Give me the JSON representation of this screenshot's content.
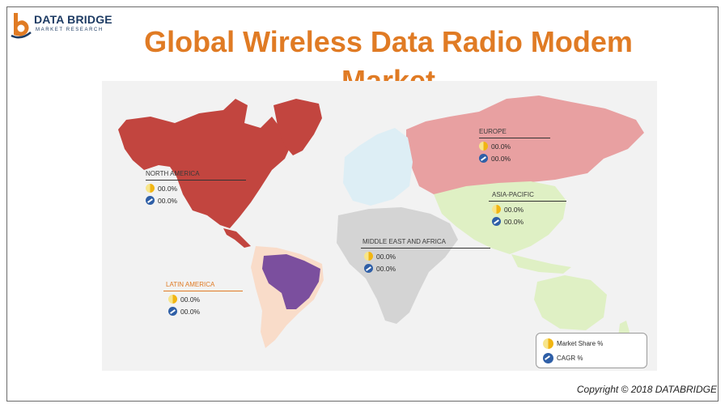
{
  "brand": {
    "name": "DATA BRIDGE",
    "tagline": "MARKET RESEARCH",
    "logo_letter": "b"
  },
  "title": "Global Wireless Data Radio Modem Market",
  "regions": [
    {
      "name": "NORTH AMERICA",
      "market_share": "00.0%",
      "cagr": "00.0%",
      "color": "#c2453f"
    },
    {
      "name": "EUROPE",
      "market_share": "00.0%",
      "cagr": "00.0%",
      "color": "#e8a0a1"
    },
    {
      "name": "ASIA-PACIFIC",
      "market_share": "00.0%",
      "cagr": "00.0%",
      "color": "#dff0c4"
    },
    {
      "name": "MIDDLE EAST AND AFRICA",
      "market_share": "00.0%",
      "cagr": "00.0%",
      "color": "#d4d4d4"
    },
    {
      "name": "LATIN AMERICA",
      "market_share": "00.0%",
      "cagr": "00.0%",
      "color": "#f9dcc9"
    }
  ],
  "legend": {
    "market_share_label": "Market Share  %",
    "cagr_label": "CAGR  %",
    "market_share_icon": "pie-icon",
    "cagr_icon": "growth-chart-icon"
  },
  "copyright": "Copyright © 2018 DATABRIDGE",
  "colors": {
    "title": "#e07b24",
    "brazil": "#7b4f9e",
    "greenland": "#c2453f",
    "russia_north": "#e8a0a1",
    "other_land": "#ddeef5"
  }
}
